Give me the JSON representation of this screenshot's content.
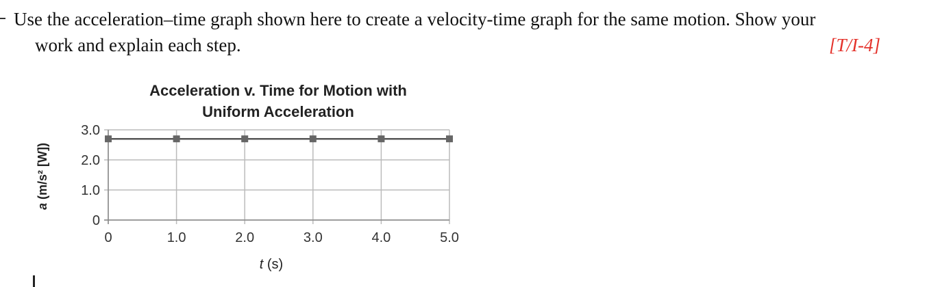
{
  "question": {
    "line1": "Use the acceleration–time graph shown here to create a velocity-time graph for the same motion. Show your",
    "line2": "work and explain each step.",
    "tag": "[T/I-4]"
  },
  "chart_data": {
    "type": "line",
    "title_line1": "Acceleration v. Time for Motion with",
    "title_line2": "Uniform Acceleration",
    "xlabel": "t (s)",
    "ylabel": "a (m/s² [W])",
    "x": [
      0,
      1.0,
      2.0,
      3.0,
      4.0,
      5.0
    ],
    "series": [
      {
        "values": [
          2.7,
          2.7,
          2.7,
          2.7,
          2.7,
          2.7
        ]
      }
    ],
    "xlim": [
      0,
      5.0
    ],
    "ylim": [
      0,
      3.0
    ],
    "x_ticks": [
      "0",
      "1.0",
      "2.0",
      "3.0",
      "4.0",
      "5.0"
    ],
    "y_ticks": [
      "0",
      "1.0",
      "2.0",
      "3.0"
    ],
    "grid": true,
    "line_color": "#555555",
    "marker_color": "#666666",
    "grid_color": "#bbbbbb"
  }
}
